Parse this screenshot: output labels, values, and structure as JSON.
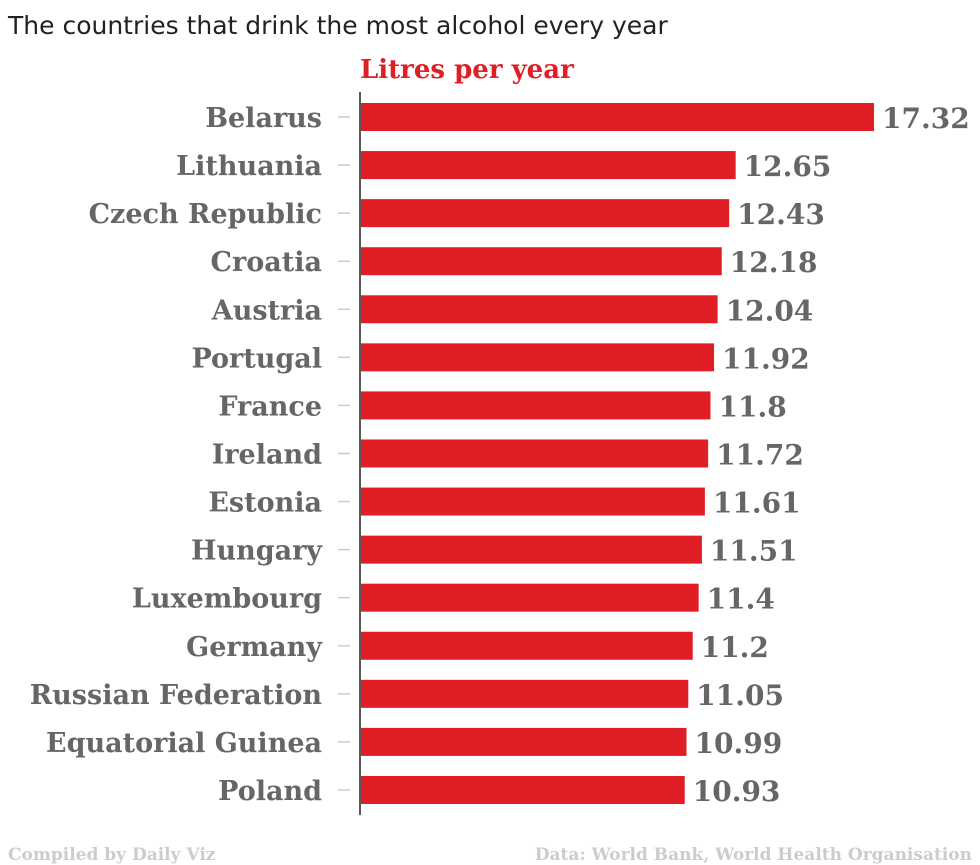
{
  "chart_data": {
    "type": "bar",
    "orientation": "horizontal",
    "title": "The countries that drink the most alcohol every year",
    "subtitle": "Litres per year",
    "categories": [
      "Belarus",
      "Lithuania",
      "Czech Republic",
      "Croatia",
      "Austria",
      "Portugal",
      "France",
      "Ireland",
      "Estonia",
      "Hungary",
      "Luxembourg",
      "Germany",
      "Russian Federation",
      "Equatorial Guinea",
      "Poland"
    ],
    "values": [
      17.32,
      12.65,
      12.43,
      12.18,
      12.04,
      11.92,
      11.8,
      11.72,
      11.61,
      11.51,
      11.4,
      11.2,
      11.05,
      10.99,
      10.93
    ],
    "value_labels": [
      "17.32",
      "12.65",
      "12.43",
      "12.18",
      "12.04",
      "11.92",
      "11.8",
      "11.72",
      "11.61",
      "11.51",
      "11.4",
      "11.2",
      "11.05",
      "10.99",
      "10.93"
    ],
    "xlim": [
      0,
      17.32
    ],
    "grid": false,
    "xlabel": "",
    "ylabel": "",
    "bar_color": "#e01e26"
  },
  "footer": {
    "credit": "Compiled by Daily Viz",
    "source": "Data: World Bank, World Health Organisation"
  }
}
